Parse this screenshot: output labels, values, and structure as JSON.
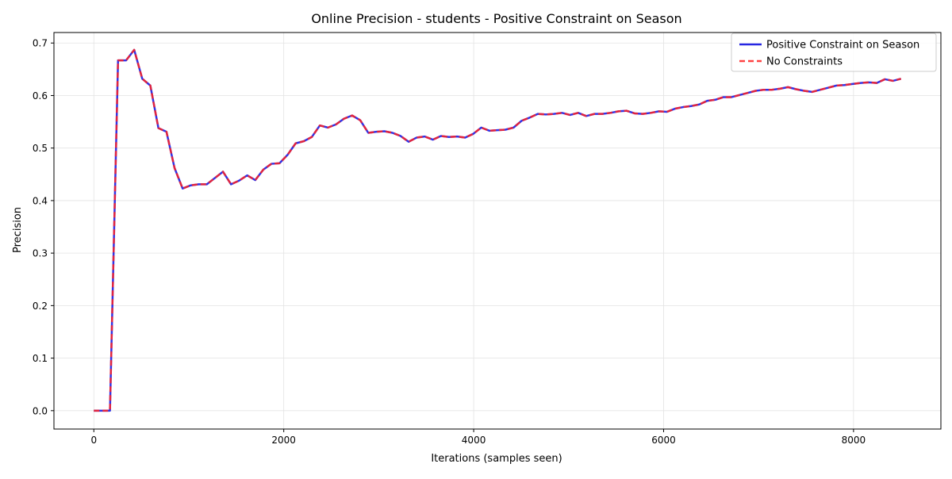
{
  "chart_data": {
    "type": "line",
    "title": "Online Precision - students - Positive Constraint on Season",
    "xlabel": "Iterations (samples seen)",
    "ylabel": "Precision",
    "xlim": [
      -420,
      8920
    ],
    "ylim": [
      -0.035,
      0.72
    ],
    "xticks": [
      0,
      2000,
      4000,
      6000,
      8000
    ],
    "xtick_labels": [
      "0",
      "2000",
      "4000",
      "6000",
      "8000"
    ],
    "yticks": [
      0.0,
      0.1,
      0.2,
      0.3,
      0.4,
      0.5,
      0.6,
      0.7
    ],
    "ytick_labels": [
      "0.0",
      "0.1",
      "0.2",
      "0.3",
      "0.4",
      "0.5",
      "0.6",
      "0.7"
    ],
    "grid": true,
    "legend_position": "top-right",
    "x": [
      0,
      85,
      170,
      255,
      340,
      425,
      510,
      595,
      680,
      765,
      850,
      935,
      1020,
      1105,
      1190,
      1275,
      1360,
      1445,
      1530,
      1615,
      1700,
      1785,
      1870,
      1955,
      2040,
      2125,
      2210,
      2295,
      2380,
      2465,
      2550,
      2635,
      2720,
      2805,
      2890,
      2975,
      3060,
      3145,
      3230,
      3315,
      3400,
      3485,
      3570,
      3655,
      3740,
      3825,
      3910,
      3995,
      4080,
      4165,
      4250,
      4335,
      4420,
      4505,
      4590,
      4675,
      4760,
      4845,
      4930,
      5015,
      5100,
      5185,
      5270,
      5355,
      5440,
      5525,
      5610,
      5695,
      5780,
      5865,
      5950,
      6035,
      6120,
      6205,
      6290,
      6375,
      6460,
      6545,
      6630,
      6715,
      6800,
      6885,
      6970,
      7055,
      7140,
      7225,
      7310,
      7395,
      7480,
      7565,
      7650,
      7735,
      7820,
      7905,
      7990,
      8075,
      8160,
      8245,
      8330,
      8415,
      8500
    ],
    "series": [
      {
        "name": "Positive Constraint on Season",
        "color": "#0000dd",
        "style": "solid",
        "values": [
          0.0,
          0.0,
          0.0,
          0.667,
          0.667,
          0.687,
          0.632,
          0.619,
          0.538,
          0.531,
          0.462,
          0.423,
          0.429,
          0.431,
          0.431,
          0.443,
          0.455,
          0.431,
          0.438,
          0.448,
          0.439,
          0.459,
          0.47,
          0.471,
          0.487,
          0.509,
          0.513,
          0.521,
          0.543,
          0.539,
          0.545,
          0.556,
          0.562,
          0.553,
          0.529,
          0.531,
          0.532,
          0.529,
          0.523,
          0.512,
          0.52,
          0.522,
          0.516,
          0.523,
          0.521,
          0.522,
          0.52,
          0.527,
          0.539,
          0.533,
          0.534,
          0.535,
          0.539,
          0.552,
          0.558,
          0.565,
          0.564,
          0.565,
          0.567,
          0.563,
          0.567,
          0.561,
          0.565,
          0.565,
          0.567,
          0.57,
          0.571,
          0.566,
          0.565,
          0.567,
          0.57,
          0.569,
          0.575,
          0.578,
          0.58,
          0.583,
          0.59,
          0.592,
          0.597,
          0.597,
          0.601,
          0.605,
          0.609,
          0.611,
          0.611,
          0.613,
          0.616,
          0.612,
          0.609,
          0.607,
          0.611,
          0.615,
          0.619,
          0.62,
          0.622,
          0.624,
          0.625,
          0.624,
          0.631,
          0.628,
          0.632
        ]
      },
      {
        "name": "No Constraints",
        "color": "#ff2222",
        "style": "dashed",
        "values": [
          0.0,
          0.0,
          0.0,
          0.667,
          0.667,
          0.687,
          0.632,
          0.619,
          0.538,
          0.531,
          0.462,
          0.423,
          0.429,
          0.431,
          0.431,
          0.443,
          0.455,
          0.431,
          0.438,
          0.448,
          0.439,
          0.459,
          0.47,
          0.471,
          0.487,
          0.509,
          0.513,
          0.521,
          0.543,
          0.539,
          0.545,
          0.556,
          0.562,
          0.553,
          0.529,
          0.531,
          0.532,
          0.529,
          0.523,
          0.512,
          0.52,
          0.522,
          0.516,
          0.523,
          0.521,
          0.522,
          0.52,
          0.527,
          0.539,
          0.533,
          0.534,
          0.535,
          0.539,
          0.552,
          0.558,
          0.565,
          0.564,
          0.565,
          0.567,
          0.563,
          0.567,
          0.561,
          0.565,
          0.565,
          0.567,
          0.57,
          0.571,
          0.566,
          0.565,
          0.567,
          0.57,
          0.569,
          0.575,
          0.578,
          0.58,
          0.583,
          0.59,
          0.592,
          0.597,
          0.597,
          0.601,
          0.605,
          0.609,
          0.611,
          0.611,
          0.613,
          0.616,
          0.612,
          0.609,
          0.607,
          0.611,
          0.615,
          0.619,
          0.62,
          0.622,
          0.624,
          0.625,
          0.624,
          0.631,
          0.628,
          0.632
        ]
      }
    ]
  }
}
